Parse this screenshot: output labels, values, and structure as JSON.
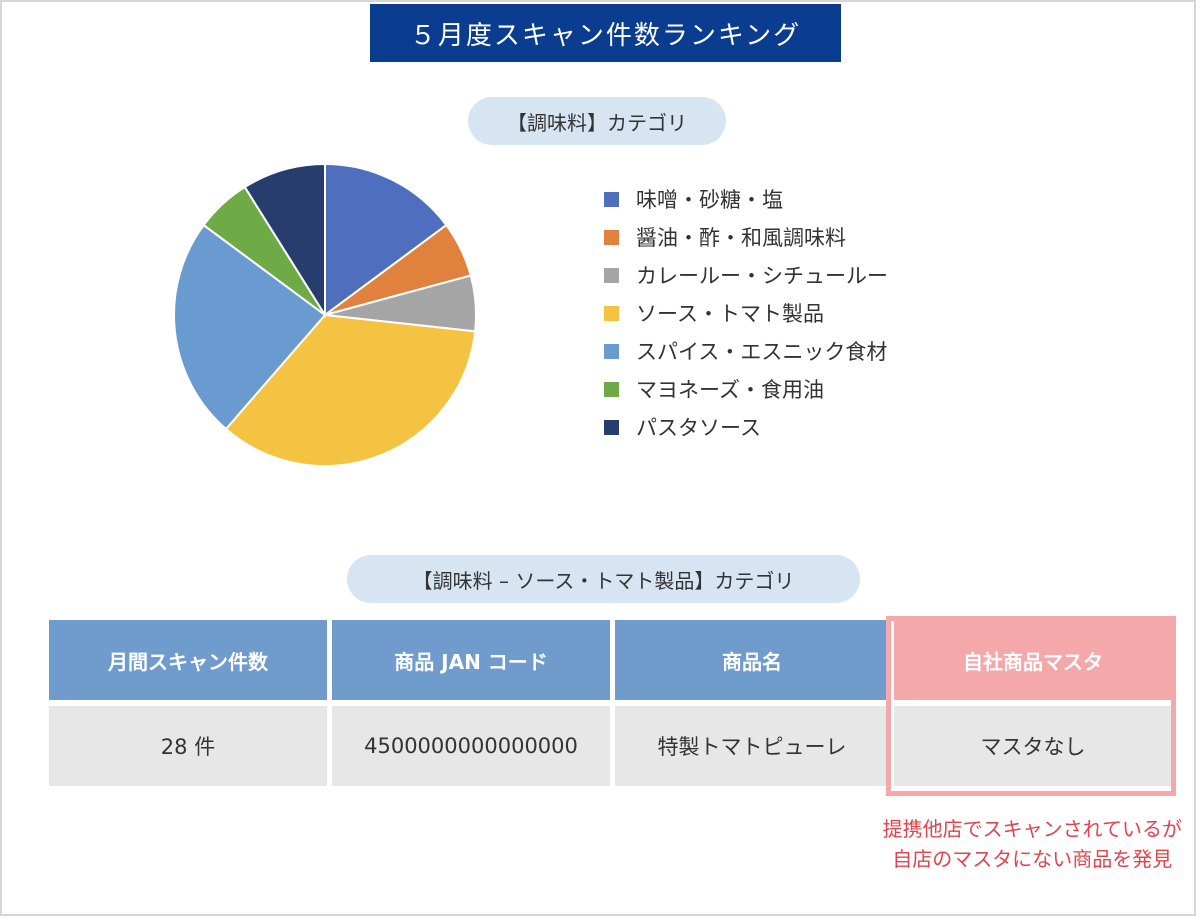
{
  "header": {
    "title": "５月度スキャン件数ランキング"
  },
  "pie_section": {
    "caption": "【調味料】カテゴリ"
  },
  "chart_data": {
    "type": "pie",
    "title": "【調味料】カテゴリ",
    "start_angle_deg": 0,
    "direction": "clockwise",
    "categories": [
      "味噌・砂糖・塩",
      "醤油・酢・和風調味料",
      "カレールー・シチュールー",
      "ソース・トマト製品",
      "スパイス・エスニック食材",
      "マヨネーズ・食用油",
      "パスタソース"
    ],
    "values": [
      15,
      6,
      6,
      35,
      24,
      6,
      9
    ],
    "colors": [
      "#4f6fbe",
      "#e0823e",
      "#a5a5a5",
      "#f5c342",
      "#6a9bd0",
      "#6eab47",
      "#263d6e"
    ],
    "legend_position": "right"
  },
  "table_section": {
    "caption": "【調味料 – ソース・トマト製品】カテゴリ"
  },
  "table": {
    "headers": [
      "月間スキャン件数",
      "商品 JAN コード",
      "商品名",
      "自社商品マスタ"
    ],
    "rows": [
      [
        "28 件",
        "4500000000000000",
        "特製トマトピューレ",
        "マスタなし"
      ]
    ]
  },
  "note": {
    "line1": "提携他店でスキャンされているが",
    "line2": "自店のマスタにない商品を発見"
  },
  "colors": {
    "banner": "#0a3d8f",
    "pill": "#d7e4f2",
    "table_header": "#6f9bcd",
    "highlight": "#f4a8aa",
    "note": "#e0444c"
  }
}
